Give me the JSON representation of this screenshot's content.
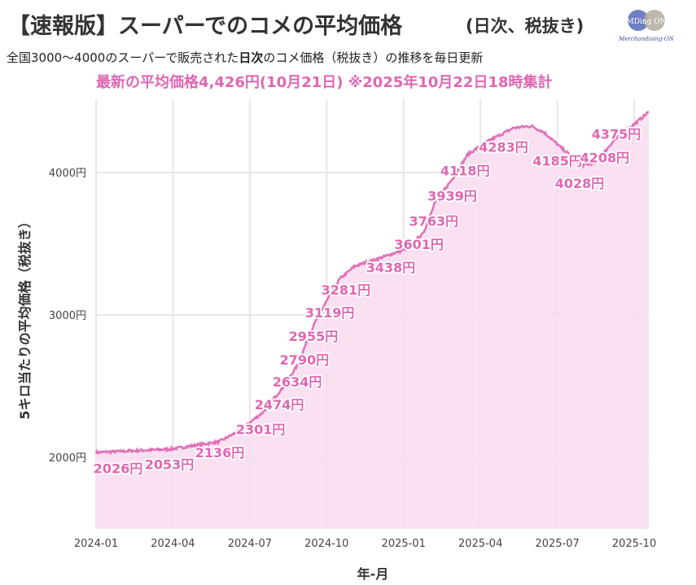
{
  "header": {
    "title_main": "【速報版】スーパーでのコメの平均価格",
    "title_suffix": "(日次、税抜き)",
    "subtitle_pre": "全国3000～4000のスーパーで販売された",
    "subtitle_bold": "日次",
    "subtitle_post": "のコメ価格（税抜き）の推移を毎日更新",
    "highlight": "最新の平均価格4,426円(10月21日) ※2025年10月22日18時集計",
    "logo_text": "MDing ON",
    "logo_caption": "Merchandising-ON"
  },
  "colors": {
    "line": "#e070b8",
    "fill": "#f8dcee",
    "label": "#e066b3",
    "grid": "#ece4ea"
  },
  "chart_data": {
    "type": "area",
    "x_unit": "months since 2024-01-01",
    "xlabel": "年-月",
    "ylabel": "5キロ当たりの平均価格（税抜き）",
    "xlim": [
      0,
      21.6
    ],
    "ylim": [
      1500,
      4550
    ],
    "grid": true,
    "x_ticks": [
      {
        "v": 0,
        "label": "2024-01"
      },
      {
        "v": 3,
        "label": "2024-04"
      },
      {
        "v": 6,
        "label": "2024-07"
      },
      {
        "v": 9,
        "label": "2024-10"
      },
      {
        "v": 12,
        "label": "2025-01"
      },
      {
        "v": 15,
        "label": "2025-04"
      },
      {
        "v": 18,
        "label": "2025-07"
      },
      {
        "v": 21,
        "label": "2025-10"
      }
    ],
    "y_ticks": [
      {
        "v": 2000,
        "label": "2000円"
      },
      {
        "v": 3000,
        "label": "3000円"
      },
      {
        "v": 4000,
        "label": "4000円"
      }
    ],
    "series": [
      {
        "name": "平均価格",
        "points": [
          [
            0,
            2034
          ],
          [
            2.9,
            2057
          ],
          [
            4.8,
            2109
          ],
          [
            5.56,
            2183
          ],
          [
            6.5,
            2314
          ],
          [
            7.27,
            2486
          ],
          [
            7.9,
            2657
          ],
          [
            8.3,
            2851
          ],
          [
            8.64,
            2983
          ],
          [
            9.05,
            3114
          ],
          [
            9.5,
            3251
          ],
          [
            10.1,
            3343
          ],
          [
            11.1,
            3400
          ],
          [
            12.0,
            3457
          ],
          [
            12.77,
            3571
          ],
          [
            13.2,
            3783
          ],
          [
            13.9,
            3954
          ],
          [
            14.5,
            4126
          ],
          [
            15.2,
            4211
          ],
          [
            16.3,
            4314
          ],
          [
            17.0,
            4326
          ],
          [
            17.5,
            4280
          ],
          [
            18.2,
            4166
          ],
          [
            19.0,
            4051
          ],
          [
            19.5,
            4069
          ],
          [
            20.2,
            4223
          ],
          [
            21.1,
            4354
          ],
          [
            21.57,
            4426
          ]
        ]
      }
    ],
    "data_labels": [
      {
        "x": 0.86,
        "value": 2026,
        "text": "2026円"
      },
      {
        "x": 2.86,
        "value": 2053,
        "text": "2053円"
      },
      {
        "x": 4.83,
        "value": 2136,
        "text": "2136円"
      },
      {
        "x": 6.42,
        "value": 2301,
        "text": "2301円"
      },
      {
        "x": 7.15,
        "value": 2474,
        "text": "2474円"
      },
      {
        "x": 7.85,
        "value": 2634,
        "text": "2634円"
      },
      {
        "x": 8.13,
        "value": 2790,
        "text": "2790円"
      },
      {
        "x": 8.48,
        "value": 2955,
        "text": "2955円"
      },
      {
        "x": 9.12,
        "value": 3119,
        "text": "3119円"
      },
      {
        "x": 9.75,
        "value": 3281,
        "text": "3281円"
      },
      {
        "x": 11.5,
        "value": 3438,
        "text": "3438円"
      },
      {
        "x": 12.6,
        "value": 3601,
        "text": "3601円"
      },
      {
        "x": 13.18,
        "value": 3763,
        "text": "3763円"
      },
      {
        "x": 13.9,
        "value": 3939,
        "text": "3939円"
      },
      {
        "x": 14.4,
        "value": 4118,
        "text": "4118円"
      },
      {
        "x": 15.9,
        "value": 4283,
        "text": "4283円"
      },
      {
        "x": 18.0,
        "value": 4185,
        "text": "4185円"
      },
      {
        "x": 18.87,
        "value": 4028,
        "text": "4028円"
      },
      {
        "x": 19.85,
        "value": 4208,
        "text": "4208円"
      },
      {
        "x": 20.3,
        "value": 4375,
        "text": "4375円"
      }
    ]
  }
}
